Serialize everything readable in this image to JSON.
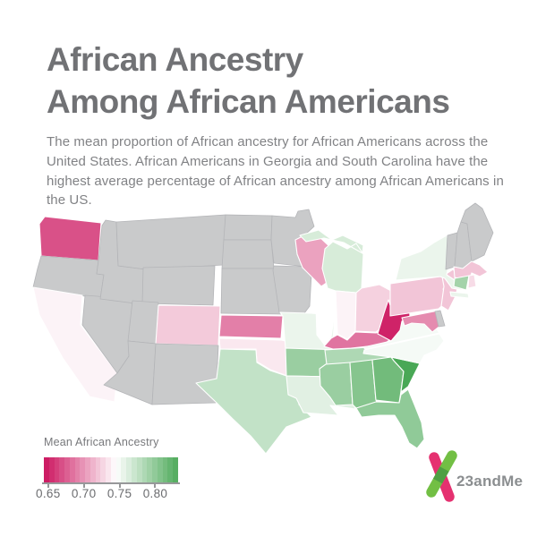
{
  "header": {
    "title_line1": "African Ancestry",
    "title_line2": "Among African Americans",
    "subtitle": "The mean proportion of African ancestry for African Americans across the United States. African Americans in Georgia and South Carolina have the highest average percentage of African ancestry among African Americans in the US."
  },
  "legend": {
    "title": "Mean African Ancestry",
    "ticks": [
      "0.65",
      "0.70",
      "0.75",
      "0.80"
    ],
    "tick_values": [
      0.65,
      0.7,
      0.75,
      0.8
    ],
    "domain": [
      0.644,
      0.832
    ],
    "steps": 26
  },
  "logo": {
    "text": "23andMe",
    "green": "#72bf44",
    "pink": "#e53170",
    "overlap": "#4f9f43",
    "text_color": "#8b8e90"
  },
  "chart_data": {
    "type": "choropleth",
    "title": "African Ancestry Among African Americans",
    "legend_title": "Mean African Ancestry",
    "scale": {
      "low_value": 0.645,
      "low_color": "#cc1760",
      "mid_value": 0.745,
      "mid_color": "#ffffff",
      "high_value": 0.845,
      "high_color": "#359e43",
      "no_data_color": "#c9cacb"
    },
    "states": [
      {
        "id": "WA",
        "name": "Washington",
        "value": 0.67
      },
      {
        "id": "OR",
        "name": "Oregon",
        "value": null
      },
      {
        "id": "CA",
        "name": "California",
        "value": 0.74
      },
      {
        "id": "NV",
        "name": "Nevada",
        "value": null
      },
      {
        "id": "ID",
        "name": "Idaho",
        "value": null
      },
      {
        "id": "MT",
        "name": "Montana",
        "value": null
      },
      {
        "id": "WY",
        "name": "Wyoming",
        "value": null
      },
      {
        "id": "UT",
        "name": "Utah",
        "value": null
      },
      {
        "id": "CO",
        "name": "Colorado",
        "value": 0.722
      },
      {
        "id": "AZ",
        "name": "Arizona",
        "value": null
      },
      {
        "id": "NM",
        "name": "New Mexico",
        "value": null
      },
      {
        "id": "ND",
        "name": "North Dakota",
        "value": null
      },
      {
        "id": "SD",
        "name": "South Dakota",
        "value": null
      },
      {
        "id": "NE",
        "name": "Nebraska",
        "value": null
      },
      {
        "id": "KS",
        "name": "Kansas",
        "value": 0.69
      },
      {
        "id": "OK",
        "name": "Oklahoma",
        "value": 0.735
      },
      {
        "id": "TX",
        "name": "Texas",
        "value": 0.775
      },
      {
        "id": "MN",
        "name": "Minnesota",
        "value": null
      },
      {
        "id": "IA",
        "name": "Iowa",
        "value": null
      },
      {
        "id": "MO",
        "name": "Missouri",
        "value": 0.755
      },
      {
        "id": "AR",
        "name": "Arkansas",
        "value": 0.795
      },
      {
        "id": "LA",
        "name": "Louisiana",
        "value": 0.76
      },
      {
        "id": "WI",
        "name": "Wisconsin",
        "value": 0.705
      },
      {
        "id": "IL",
        "name": "Illinois",
        "value": 0.745
      },
      {
        "id": "MI",
        "name": "Michigan",
        "value": 0.765
      },
      {
        "id": "IN",
        "name": "Indiana",
        "value": 0.74
      },
      {
        "id": "OH",
        "name": "Ohio",
        "value": 0.725
      },
      {
        "id": "KY",
        "name": "Kentucky",
        "value": 0.685
      },
      {
        "id": "TN",
        "name": "Tennessee",
        "value": 0.785
      },
      {
        "id": "MS",
        "name": "Mississippi",
        "value": 0.795
      },
      {
        "id": "AL",
        "name": "Alabama",
        "value": 0.805
      },
      {
        "id": "GA",
        "name": "Georgia",
        "value": 0.815
      },
      {
        "id": "FL",
        "name": "Florida",
        "value": 0.8
      },
      {
        "id": "SC",
        "name": "South Carolina",
        "value": 0.835
      },
      {
        "id": "NC",
        "name": "North Carolina",
        "value": 0.75
      },
      {
        "id": "VA",
        "name": "Virginia",
        "value": 0.75
      },
      {
        "id": "WV",
        "name": "West Virginia",
        "value": 0.65
      },
      {
        "id": "MD",
        "name": "Maryland",
        "value": 0.695
      },
      {
        "id": "DE",
        "name": "Delaware",
        "value": null
      },
      {
        "id": "NJ",
        "name": "New Jersey",
        "value": 0.72
      },
      {
        "id": "PA",
        "name": "Pennsylvania",
        "value": 0.72
      },
      {
        "id": "NY",
        "name": "New York",
        "value": 0.755
      },
      {
        "id": "VT",
        "name": "Vermont",
        "value": null
      },
      {
        "id": "NH",
        "name": "New Hampshire",
        "value": null
      },
      {
        "id": "ME",
        "name": "Maine",
        "value": null
      },
      {
        "id": "MA",
        "name": "Massachusetts",
        "value": 0.72
      },
      {
        "id": "CT",
        "name": "Connecticut",
        "value": 0.79
      },
      {
        "id": "RI",
        "name": "Rhode Island",
        "value": 0.73
      }
    ]
  }
}
